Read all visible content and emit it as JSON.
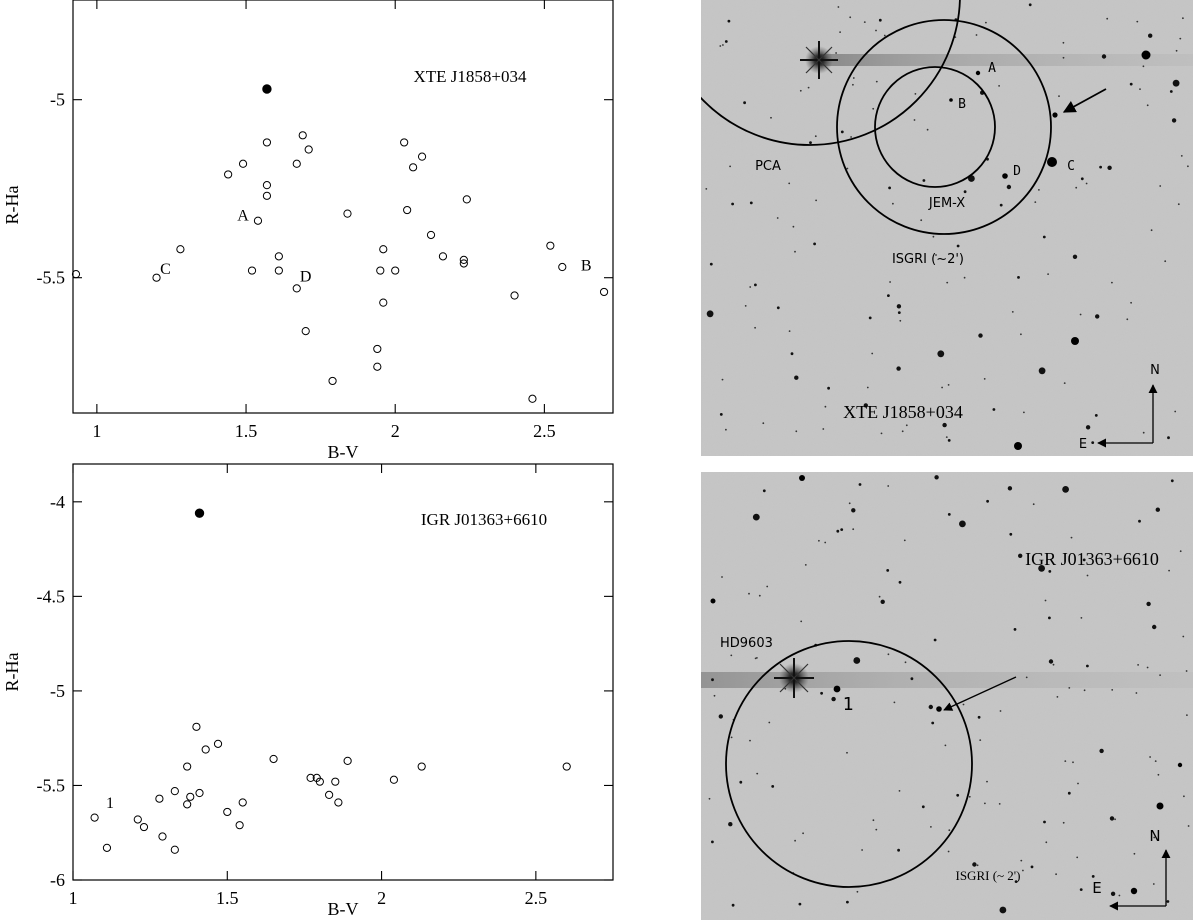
{
  "chart_data": [
    {
      "type": "scatter",
      "title": "XTE J1858+034",
      "xlabel": "B-V",
      "ylabel": "R-Ha",
      "xlim": [
        0.92,
        2.73
      ],
      "ylim": [
        -5.88,
        -4.72
      ],
      "y_inverted": true,
      "xticks": [
        1,
        1.5,
        2,
        2.5
      ],
      "xtick_labels": [
        "1",
        "1.5",
        "2",
        "2.5"
      ],
      "yticks": [
        -5,
        -5.5
      ],
      "ytick_labels": [
        "-5",
        "-5.5"
      ],
      "grid": false,
      "series": [
        {
          "marker": "filled",
          "points": [
            [
              1.57,
              -4.97
            ]
          ]
        },
        {
          "marker": "open",
          "points": [
            [
              0.93,
              -5.49
            ],
            [
              1.2,
              -5.5
            ],
            [
              1.28,
              -5.42
            ],
            [
              1.44,
              -5.21
            ],
            [
              1.49,
              -5.18
            ],
            [
              1.52,
              -5.48
            ],
            [
              1.54,
              -5.34
            ],
            [
              1.57,
              -5.12
            ],
            [
              1.57,
              -5.24
            ],
            [
              1.57,
              -5.27
            ],
            [
              1.61,
              -5.44
            ],
            [
              1.61,
              -5.48
            ],
            [
              1.67,
              -5.18
            ],
            [
              1.67,
              -5.53
            ],
            [
              1.69,
              -5.1
            ],
            [
              1.7,
              -5.65
            ],
            [
              1.71,
              -5.14
            ],
            [
              1.79,
              -5.79
            ],
            [
              1.84,
              -5.32
            ],
            [
              1.94,
              -5.7
            ],
            [
              1.94,
              -5.75
            ],
            [
              1.95,
              -5.48
            ],
            [
              1.96,
              -5.42
            ],
            [
              1.96,
              -5.57
            ],
            [
              2.0,
              -5.48
            ],
            [
              2.03,
              -5.12
            ],
            [
              2.04,
              -5.31
            ],
            [
              2.06,
              -5.19
            ],
            [
              2.09,
              -5.16
            ],
            [
              2.12,
              -5.38
            ],
            [
              2.16,
              -5.44
            ],
            [
              2.23,
              -5.45
            ],
            [
              2.23,
              -5.46
            ],
            [
              2.24,
              -5.28
            ],
            [
              2.4,
              -5.55
            ],
            [
              2.46,
              -5.84
            ],
            [
              2.52,
              -5.41
            ],
            [
              2.56,
              -5.47
            ],
            [
              2.7,
              -5.54
            ]
          ]
        }
      ],
      "annotations": [
        {
          "text": "A",
          "x": 1.49,
          "y": -5.34
        },
        {
          "text": "C",
          "x": 1.23,
          "y": -5.49
        },
        {
          "text": "D",
          "x": 1.7,
          "y": -5.51
        },
        {
          "text": "B",
          "x": 2.64,
          "y": -5.48
        }
      ]
    },
    {
      "type": "scatter",
      "title": "IGR J01363+6610",
      "xlabel": "B-V",
      "ylabel": "R-Ha",
      "xlim": [
        1.0,
        2.75
      ],
      "ylim": [
        -6.0,
        -3.8
      ],
      "y_inverted": true,
      "xticks": [
        1,
        1.5,
        2,
        2.5
      ],
      "xtick_labels": [
        "1",
        "1.5",
        "2",
        "2.5"
      ],
      "yticks": [
        -4,
        -4.5,
        -5,
        -5.5,
        -6
      ],
      "ytick_labels": [
        "-4",
        "-4.5",
        "-5",
        "-5.5",
        "-6"
      ],
      "grid": false,
      "series": [
        {
          "marker": "filled",
          "points": [
            [
              1.41,
              -4.06
            ]
          ]
        },
        {
          "marker": "open",
          "points": [
            [
              1.07,
              -5.67
            ],
            [
              1.11,
              -5.83
            ],
            [
              1.21,
              -5.68
            ],
            [
              1.23,
              -5.72
            ],
            [
              1.28,
              -5.57
            ],
            [
              1.29,
              -5.77
            ],
            [
              1.33,
              -5.53
            ],
            [
              1.33,
              -5.84
            ],
            [
              1.37,
              -5.4
            ],
            [
              1.37,
              -5.6
            ],
            [
              1.38,
              -5.56
            ],
            [
              1.4,
              -5.19
            ],
            [
              1.41,
              -5.54
            ],
            [
              1.43,
              -5.31
            ],
            [
              1.47,
              -5.28
            ],
            [
              1.5,
              -5.64
            ],
            [
              1.54,
              -5.71
            ],
            [
              1.55,
              -5.59
            ],
            [
              1.65,
              -5.36
            ],
            [
              1.77,
              -5.46
            ],
            [
              1.79,
              -5.46
            ],
            [
              1.8,
              -5.48
            ],
            [
              1.83,
              -5.55
            ],
            [
              1.85,
              -5.48
            ],
            [
              1.86,
              -5.59
            ],
            [
              1.89,
              -5.37
            ],
            [
              2.04,
              -5.47
            ],
            [
              2.13,
              -5.4
            ],
            [
              2.6,
              -5.4
            ]
          ]
        }
      ],
      "annotations": [
        {
          "text": "1",
          "x": 1.12,
          "y": -5.62
        }
      ]
    }
  ],
  "images": {
    "top": {
      "title": "XTE J1858+034",
      "labels": {
        "pca": "PCA",
        "jemx": "JEM-X",
        "isgri": "ISGRI (~2')",
        "a": "A",
        "b": "B",
        "c": "C",
        "d": "D",
        "north": "N",
        "east": "E"
      }
    },
    "bottom": {
      "title": "IGR J01363+6610",
      "labels": {
        "hd": "HD9603",
        "one": "1",
        "isgri": "ISGRI (~ 2')",
        "north": "N",
        "east": "E"
      }
    }
  }
}
